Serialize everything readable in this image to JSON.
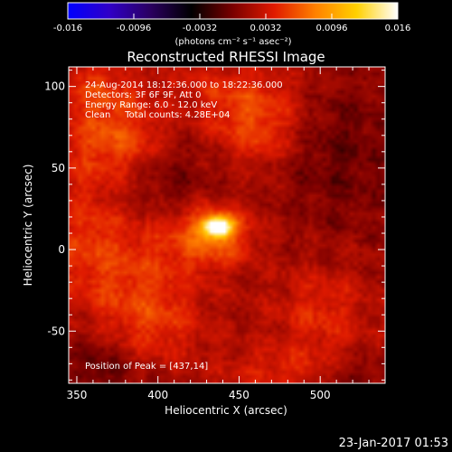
{
  "chart_data": {
    "type": "heatmap",
    "title": "Reconstructed RHESSI Image",
    "xlabel": "Heliocentric X (arcsec)",
    "ylabel": "Heliocentric Y (arcsec)",
    "xlim": [
      345,
      540
    ],
    "ylim": [
      -82,
      112
    ],
    "x_ticks": [
      350,
      400,
      450,
      500
    ],
    "y_ticks": [
      -50,
      0,
      50,
      100
    ],
    "colorbar": {
      "range": [
        -0.016,
        0.016
      ],
      "ticks": [
        "-0.016",
        "-0.0096",
        "-0.0032",
        "0.0032",
        "0.0096",
        "0.016"
      ],
      "unit_label": "(photons cm⁻² s⁻¹ asec⁻²)",
      "colormap": [
        "#0000ff",
        "#3000c8",
        "#2a0060",
        "#000000",
        "#7a0000",
        "#e01a00",
        "#ff8000",
        "#ffd000",
        "#ffffff"
      ]
    },
    "annotations": [
      "24-Aug-2014 18:12:36.000 to 18:22:36.000",
      "Detectors: 3F 6F 9F, Att 0",
      "Energy Range: 6.0 - 12.0 keV",
      "Clean     Total counts: 4.28E+04"
    ],
    "peak": {
      "label": "Position of Peak = [437,14]",
      "x": 437,
      "y": 14,
      "value": 0.016
    },
    "features": [
      {
        "x": 437,
        "y": 14,
        "sx": 6,
        "sy": 4,
        "value": 0.016
      },
      {
        "x": 433,
        "y": 10,
        "sx": 18,
        "sy": 14,
        "value": 0.006
      },
      {
        "x": 375,
        "y": 68,
        "sx": 22,
        "sy": 18,
        "value": 0.0045
      },
      {
        "x": 460,
        "y": 75,
        "sx": 20,
        "sy": 16,
        "value": 0.0045
      },
      {
        "x": 380,
        "y": -5,
        "sx": 28,
        "sy": 22,
        "value": 0.0035
      },
      {
        "x": 395,
        "y": -45,
        "sx": 26,
        "sy": 18,
        "value": 0.0035
      },
      {
        "x": 500,
        "y": -40,
        "sx": 22,
        "sy": 22,
        "value": 0.003
      },
      {
        "x": 360,
        "y": 100,
        "sx": 18,
        "sy": 14,
        "value": 0.003
      },
      {
        "x": 445,
        "y": 100,
        "sx": 30,
        "sy": 12,
        "value": 0.0025
      },
      {
        "x": 470,
        "y": -75,
        "sx": 25,
        "sy": 10,
        "value": 0.0025
      },
      {
        "x": 355,
        "y": 20,
        "sx": 12,
        "sy": 30,
        "value": 0.002
      },
      {
        "x": 410,
        "y": 40,
        "sx": 20,
        "sy": 20,
        "value": -0.002
      },
      {
        "x": 510,
        "y": 60,
        "sx": 25,
        "sy": 30,
        "value": -0.002
      },
      {
        "x": 365,
        "y": -70,
        "sx": 15,
        "sy": 15,
        "value": -0.0025
      },
      {
        "x": 520,
        "y": -78,
        "sx": 12,
        "sy": 8,
        "value": -0.002
      }
    ]
  },
  "footer": {
    "timestamp": "23-Jan-2017 01:53"
  }
}
